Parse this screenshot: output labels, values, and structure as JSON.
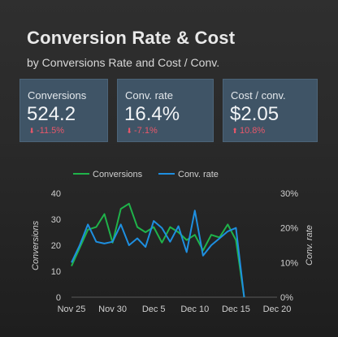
{
  "header": {
    "title": "Conversion Rate & Cost",
    "subtitle": "by Conversions Rate and Cost / Conv."
  },
  "scorecards": [
    {
      "label": "Conversions",
      "value": "524.2",
      "delta": "-11.5%",
      "direction": "down"
    },
    {
      "label": "Conv. rate",
      "value": "16.4%",
      "delta": "-7.1%",
      "direction": "down"
    },
    {
      "label": "Cost / conv.",
      "value": "$2.05",
      "delta": "10.8%",
      "direction": "up"
    }
  ],
  "colors": {
    "conversions": "#1fb34a",
    "conv_rate": "#1e8fe0",
    "delta": "#e8576a",
    "card_bg": "#3f5466"
  },
  "chart_data": {
    "type": "line",
    "legend_position": "top",
    "x_ticks": [
      "Nov 25",
      "Nov 30",
      "Dec 5",
      "Dec 10",
      "Dec 15",
      "Dec 20"
    ],
    "x": [
      "Nov 25",
      "Nov 26",
      "Nov 27",
      "Nov 28",
      "Nov 29",
      "Nov 30",
      "Dec 1",
      "Dec 2",
      "Dec 3",
      "Dec 4",
      "Dec 5",
      "Dec 6",
      "Dec 7",
      "Dec 8",
      "Dec 9",
      "Dec 10",
      "Dec 11",
      "Dec 12",
      "Dec 13",
      "Dec 14",
      "Dec 15",
      "Dec 16"
    ],
    "y_left_label": "Conversions",
    "y_right_label": "Conv. rate",
    "y_left_ticks": [
      "0",
      "10",
      "20",
      "30",
      "40"
    ],
    "y_right_ticks": [
      "0%",
      "10%",
      "20%",
      "30%"
    ],
    "y_left_range": [
      0,
      40
    ],
    "y_right_range": [
      0,
      30
    ],
    "series": [
      {
        "name": "Conversions",
        "axis": "left",
        "values": [
          12,
          19,
          26,
          27,
          32,
          21,
          34,
          36,
          27,
          25,
          27,
          21,
          27,
          25,
          22,
          24,
          18,
          24,
          23,
          28,
          22,
          0
        ]
      },
      {
        "name": "Conv. rate",
        "axis": "right",
        "values": [
          10,
          15,
          21,
          16,
          15.5,
          16,
          21,
          15,
          17,
          14.5,
          22,
          20,
          16,
          20.5,
          13,
          25,
          12,
          15,
          17,
          19,
          20,
          0
        ]
      }
    ]
  }
}
